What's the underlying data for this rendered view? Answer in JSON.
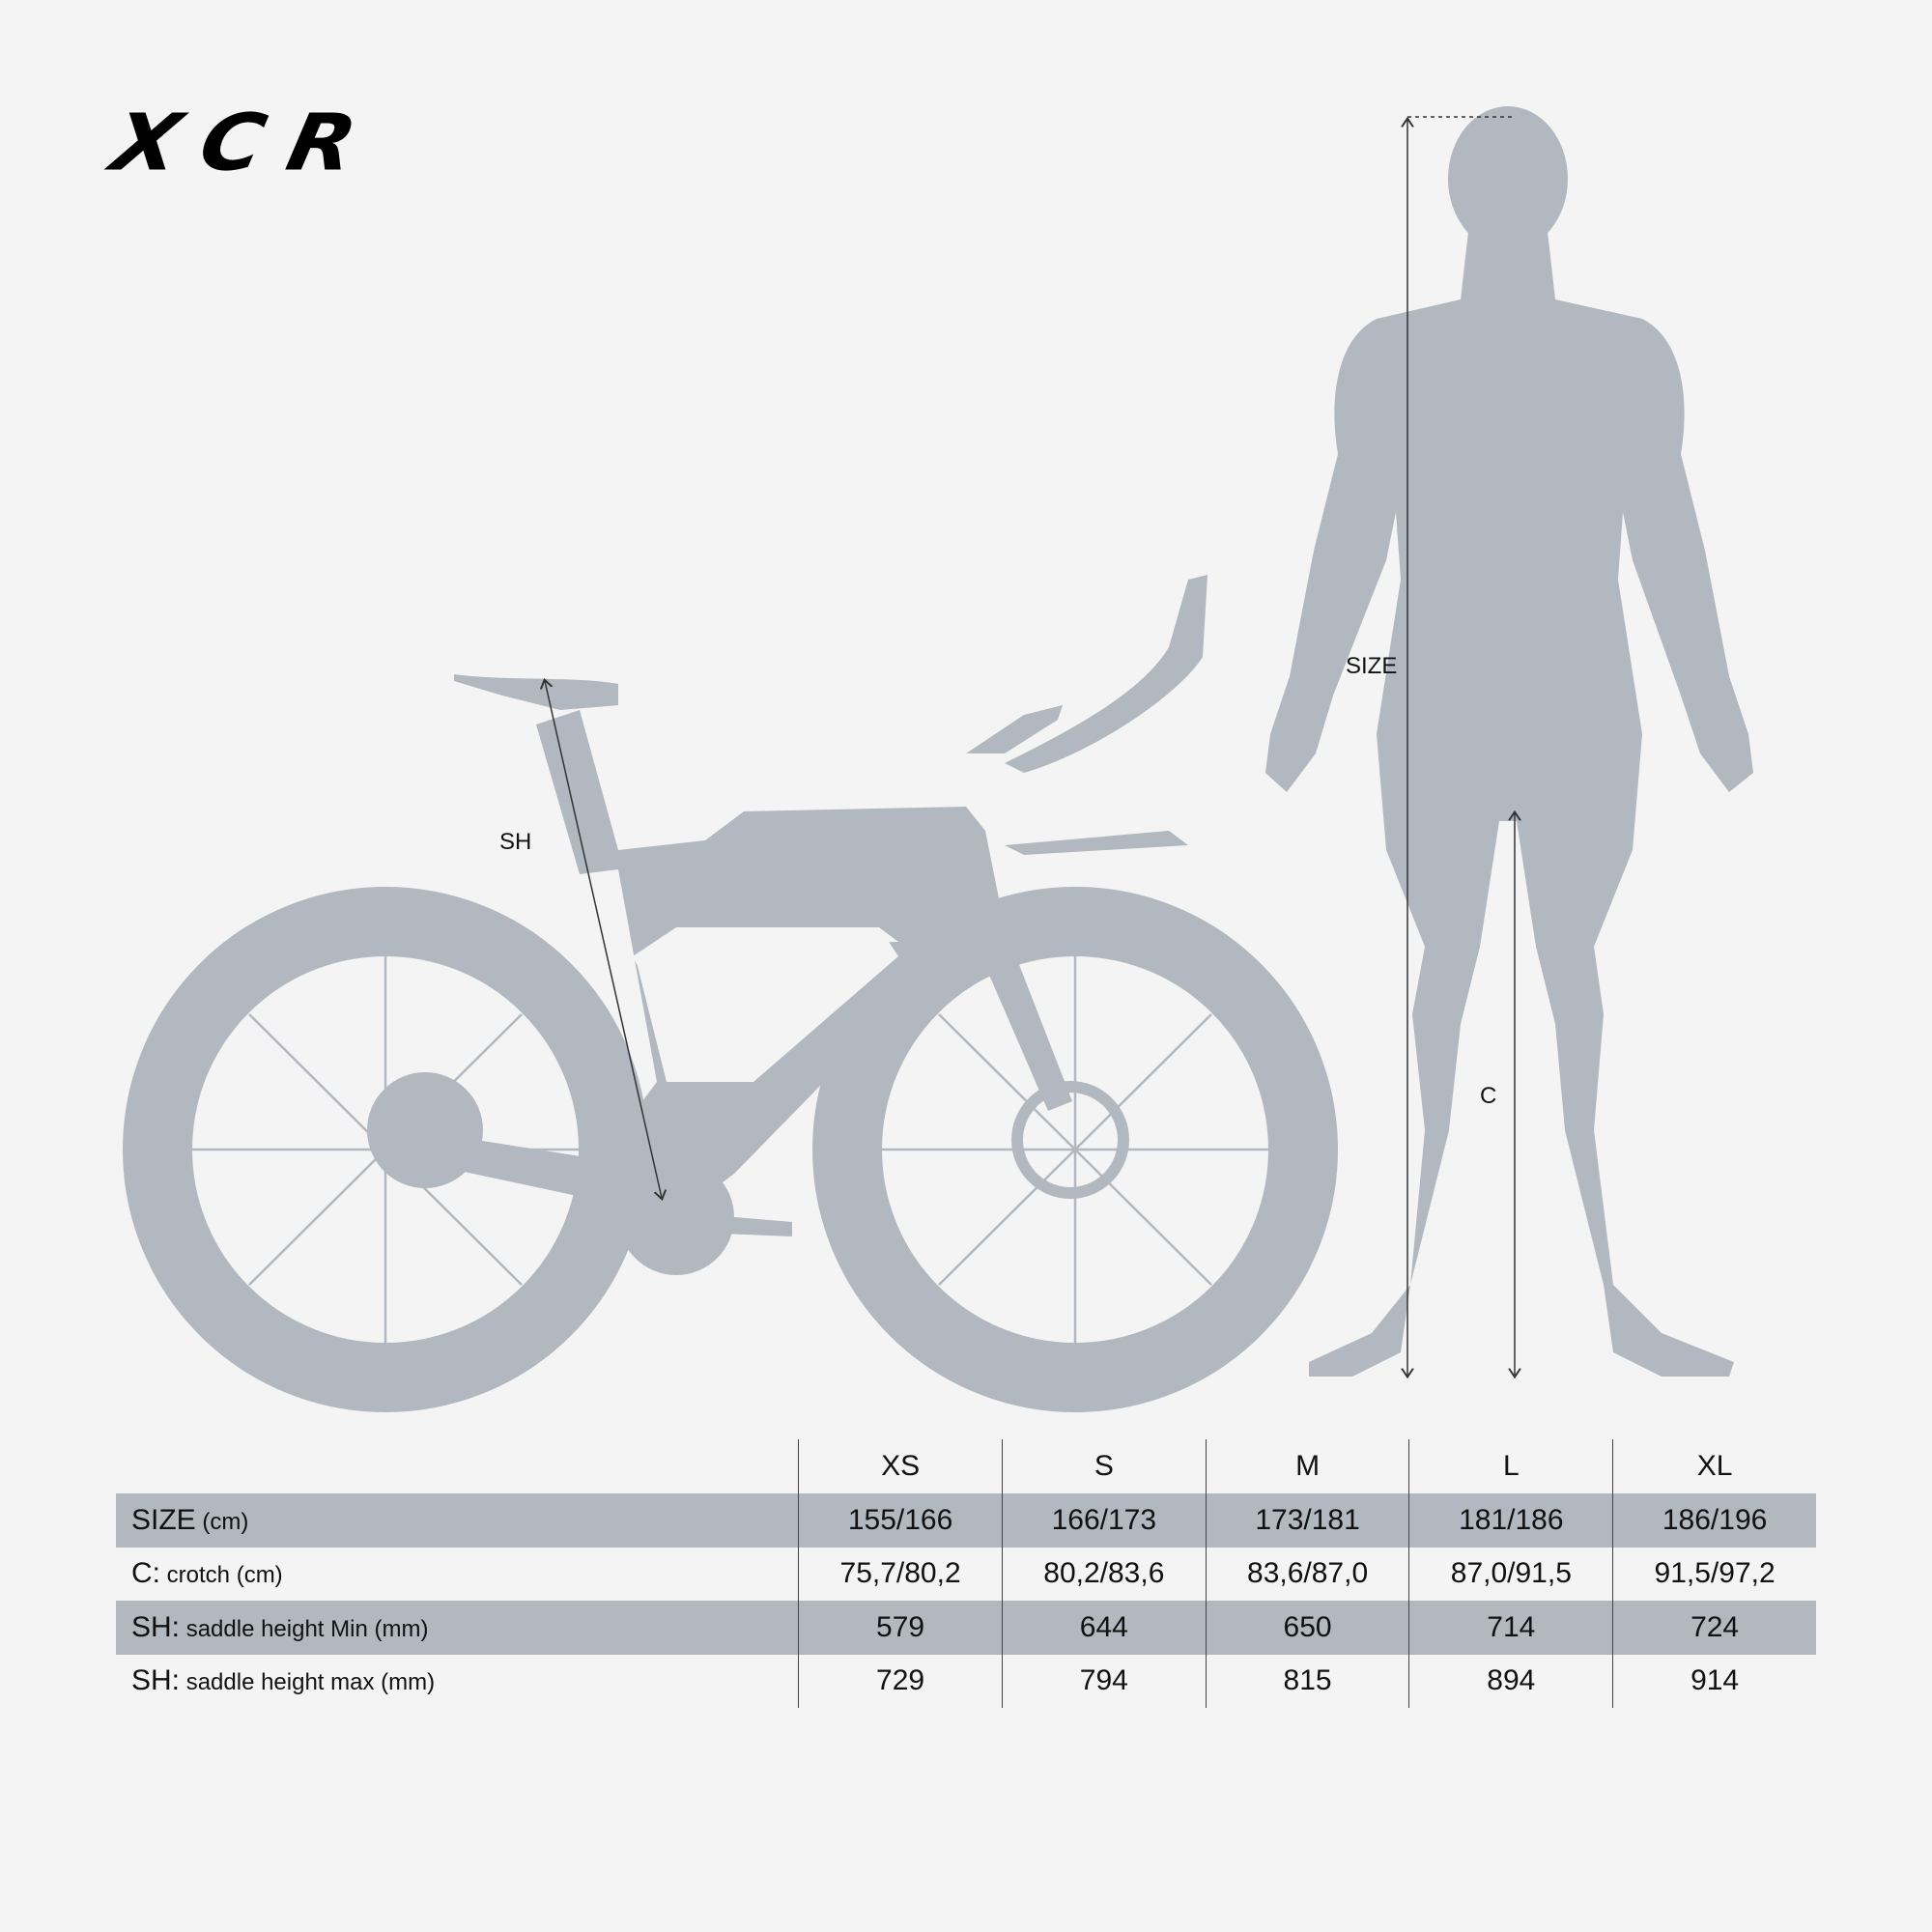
{
  "brand": {
    "logo_text": "XCR"
  },
  "colors": {
    "background": "#f4f4f4",
    "silhouette": "#b1b8bf",
    "row_highlight": "#b1b8bf",
    "text": "#111111"
  },
  "diagram_labels": {
    "size": "SIZE",
    "crotch": "C",
    "saddle_height": "SH"
  },
  "table": {
    "columns": [
      "XS",
      "S",
      "M",
      "L",
      "XL"
    ],
    "rows": [
      {
        "key": "SIZE",
        "label": "(cm)",
        "values": [
          "155/166",
          "166/173",
          "173/181",
          "181/186",
          "186/196"
        ]
      },
      {
        "key": "C:",
        "label": "crotch (cm)",
        "values": [
          "75,7/80,2",
          "80,2/83,6",
          "83,6/87,0",
          "87,0/91,5",
          "91,5/97,2"
        ]
      },
      {
        "key": "SH:",
        "label": "saddle height Min (mm)",
        "values": [
          "579",
          "644",
          "650",
          "714",
          "724"
        ]
      },
      {
        "key": "SH:",
        "label": "saddle height max (mm)",
        "values": [
          "729",
          "794",
          "815",
          "894",
          "914"
        ]
      }
    ]
  }
}
